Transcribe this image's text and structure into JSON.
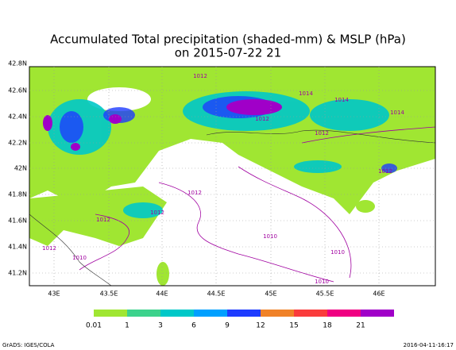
{
  "header": {
    "title": "Accumulated Total precipitation (shaded-mm) & MSLP (hPa)",
    "subtitle": "on 2015-07-22 21"
  },
  "lat_labels": [
    "42.8N",
    "42.6N",
    "42.4N",
    "42.2N",
    "42N",
    "41.8N",
    "41.6N",
    "41.4N",
    "41.2N"
  ],
  "lon_labels": [
    "43E",
    "43.5E",
    "44E",
    "44.5E",
    "45E",
    "45.5E",
    "46E"
  ],
  "contour_labels": [
    "1012",
    "1014",
    "1014",
    "1012",
    "1012",
    "1014",
    "1012",
    "1012",
    "1012",
    "1012",
    "1012",
    "1010",
    "1010",
    "1010",
    "1010"
  ],
  "colorbar": {
    "labels": [
      "0.01",
      "1",
      "3",
      "6",
      "9",
      "12",
      "15",
      "18",
      "21"
    ],
    "colors": [
      "#a0e632",
      "#3cd28c",
      "#00c8c8",
      "#00a0ff",
      "#1e3cff",
      "#f08228",
      "#fa3c3c",
      "#f00082",
      "#a000c8"
    ]
  },
  "footer": {
    "left": "GrADS: IGES/COLA",
    "right": "2016-04-11-16:17"
  }
}
